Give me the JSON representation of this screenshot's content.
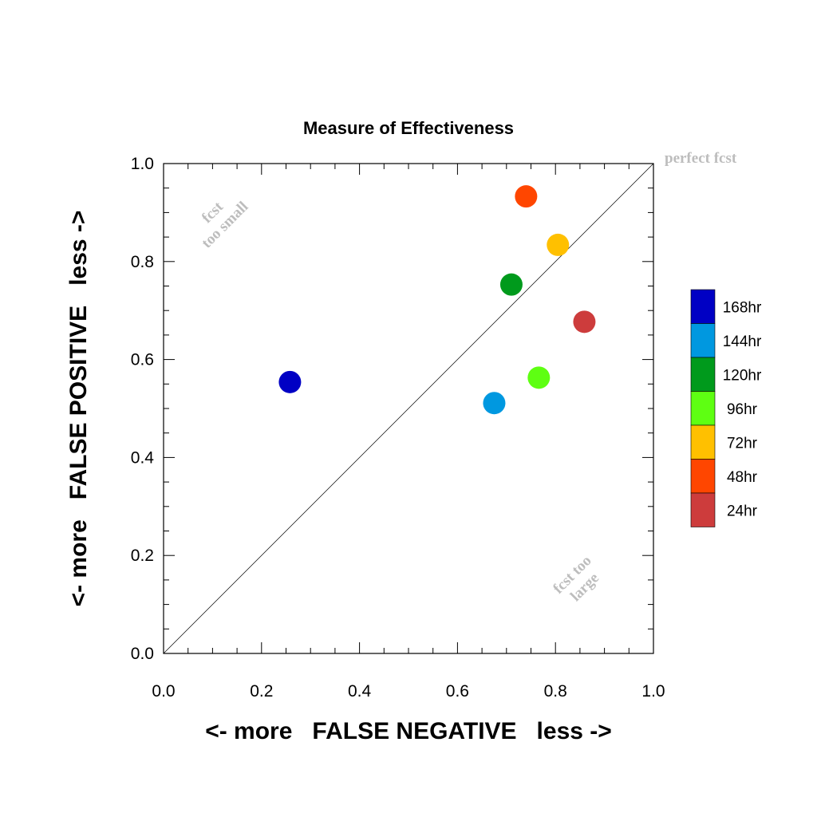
{
  "chart_data": {
    "type": "scatter",
    "title": "Measure of Effectiveness",
    "xlabel": "<- more   FALSE NEGATIVE   less ->",
    "ylabel": "<- more   FALSE POSITIVE   less ->",
    "xlim": [
      0.0,
      1.0
    ],
    "ylim": [
      0.0,
      1.0
    ],
    "xticks": [
      "0.0",
      "0.2",
      "0.4",
      "0.6",
      "0.8",
      "1.0"
    ],
    "yticks": [
      "0.0",
      "0.2",
      "0.4",
      "0.6",
      "0.8",
      "1.0"
    ],
    "grid": false,
    "reference_line": "diagonal",
    "annotations": {
      "perfect": "perfect fcst",
      "too_small": [
        "fcst",
        "too small"
      ],
      "too_large": [
        "fcst too",
        "large"
      ]
    },
    "legend_position": "right",
    "series": [
      {
        "name": "168hr",
        "color": "#0000c4",
        "x": 0.258,
        "y": 0.554
      },
      {
        "name": "144hr",
        "color": "#0098e0",
        "x": 0.675,
        "y": 0.511
      },
      {
        "name": "120hr",
        "color": "#009a1c",
        "x": 0.71,
        "y": 0.753
      },
      {
        "name": "96hr",
        "color": "#5eff12",
        "x": 0.766,
        "y": 0.563
      },
      {
        "name": "72hr",
        "color": "#ffc000",
        "x": 0.805,
        "y": 0.834
      },
      {
        "name": "48hr",
        "color": "#ff4600",
        "x": 0.74,
        "y": 0.933
      },
      {
        "name": "24hr",
        "color": "#cd3c3c",
        "x": 0.859,
        "y": 0.677
      }
    ]
  }
}
